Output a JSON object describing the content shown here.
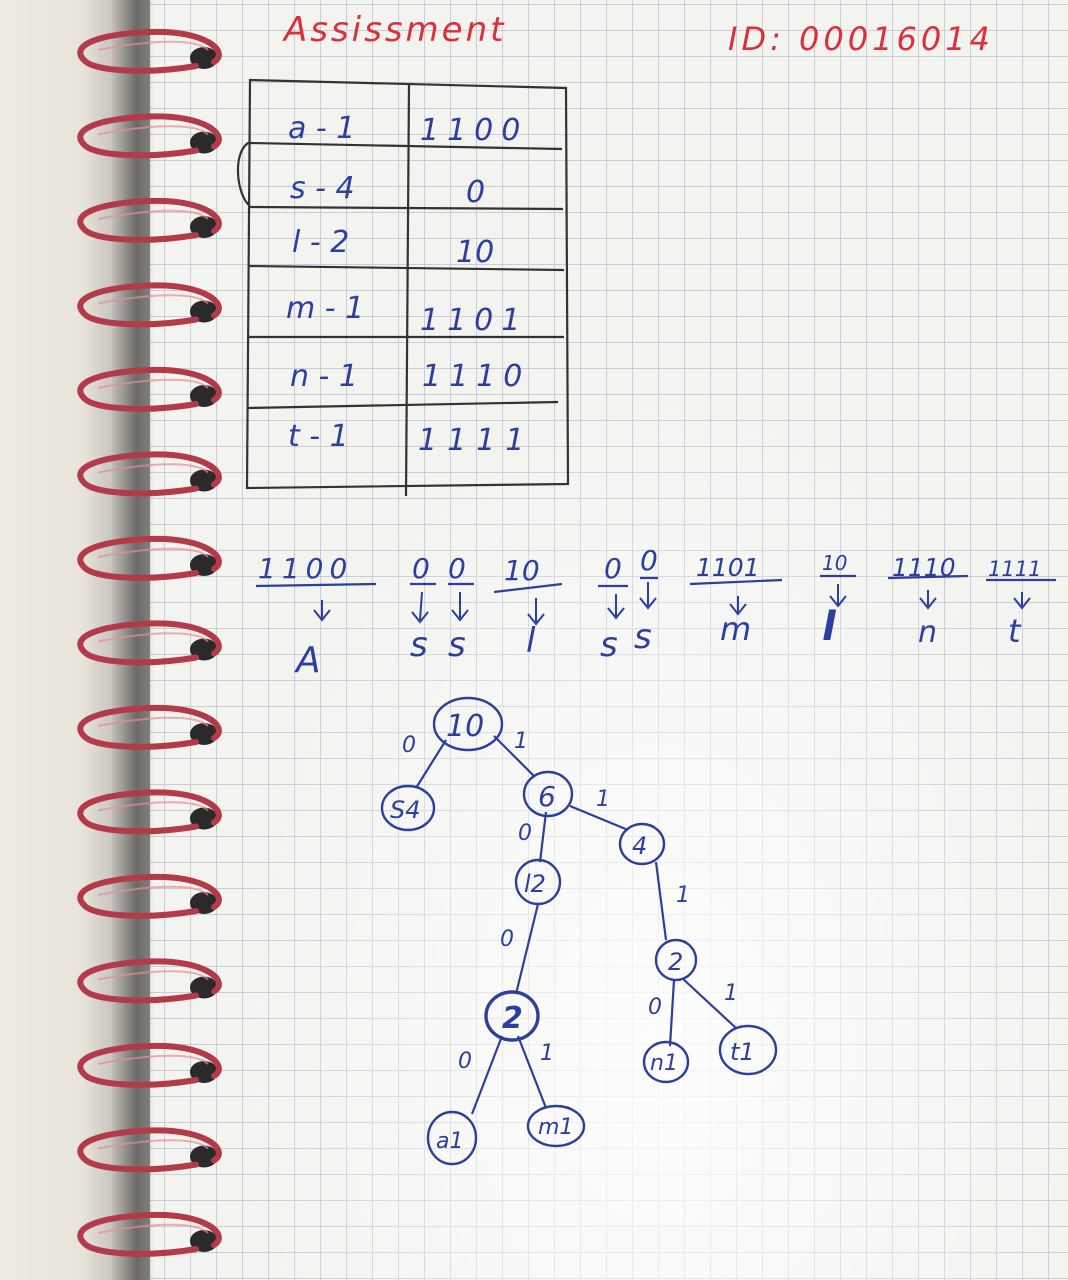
{
  "header": {
    "title": "Assissment",
    "id_label": "ID: 00016014"
  },
  "code_table": {
    "rows": [
      {
        "symbol": "a - 1",
        "code": "1100"
      },
      {
        "symbol": "s - 4",
        "code": "0"
      },
      {
        "symbol": "l - 2",
        "code": "10"
      },
      {
        "symbol": "m - 1",
        "code": "1101"
      },
      {
        "symbol": "n - 1",
        "code": "1110"
      },
      {
        "symbol": "t - 1",
        "code": "1111"
      }
    ]
  },
  "decoding": [
    {
      "bits": "1100",
      "letter": "A"
    },
    {
      "bits": "0",
      "letter": "s"
    },
    {
      "bits": "0",
      "letter": "s"
    },
    {
      "bits": "10",
      "letter": "l"
    },
    {
      "bits": "0",
      "letter": "s"
    },
    {
      "bits": "0",
      "letter": "s"
    },
    {
      "bits": "1101",
      "letter": "m"
    },
    {
      "bits": "10",
      "letter": "l"
    },
    {
      "bits": "1110",
      "letter": "n"
    },
    {
      "bits": "1111",
      "letter": "t"
    }
  ],
  "tree": {
    "nodes": {
      "root": "10",
      "s": "S4",
      "n6": "6",
      "n4": "4",
      "l": "l2",
      "n2a": "2",
      "n2b": "2",
      "a": "a1",
      "m": "m1",
      "n": "n1",
      "t": "t1"
    },
    "edges": {
      "root_s": "0",
      "root_6": "1",
      "6_l": "0",
      "6_4": "1",
      "l_2a": "0",
      "4_2b": "1",
      "2a_a": "0",
      "2a_m": "1",
      "2b_n": "0",
      "2b_t": "1"
    }
  },
  "colors": {
    "red_ink": "#d9303a",
    "blue_ink": "#2c3f9e",
    "ring": "#b33a48"
  }
}
